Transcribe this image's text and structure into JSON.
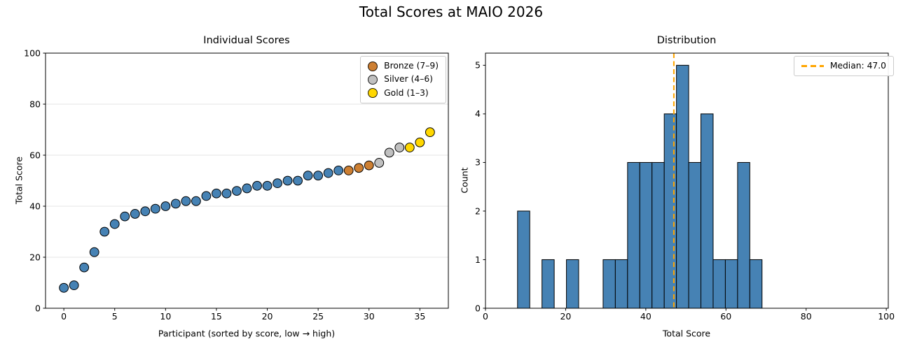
{
  "figure": {
    "suptitle": "Total Scores at MAIO 2026",
    "background": "#ffffff"
  },
  "colors": {
    "point_blue": "#4682B4",
    "bar_blue": "#4682B4",
    "bronze": "#CD7F32",
    "silver": "#C0C0C0",
    "gold": "#FFD700",
    "median_orange": "#FFA500",
    "edge_black": "#000000",
    "grid_gray": "#E6E6E6"
  },
  "chart_data": [
    {
      "type": "scatter",
      "title": "Individual Scores",
      "xlabel": "Participant (sorted by score, low → high)",
      "ylabel": "Total Score",
      "x": [
        0,
        1,
        2,
        3,
        4,
        5,
        6,
        7,
        8,
        9,
        10,
        11,
        12,
        13,
        14,
        15,
        16,
        17,
        18,
        19,
        20,
        21,
        22,
        23,
        24,
        25,
        26,
        27,
        28,
        29,
        30,
        31,
        32,
        33,
        34,
        35,
        36
      ],
      "y": [
        8,
        9,
        16,
        22,
        30,
        33,
        36,
        37,
        38,
        39,
        40,
        41,
        42,
        42,
        44,
        45,
        45,
        46,
        47,
        48,
        48,
        49,
        50,
        50,
        52,
        52,
        53,
        54,
        54,
        55,
        56,
        57,
        61,
        63,
        63,
        65,
        69
      ],
      "marker_groups": {
        "bronze": [
          28,
          29,
          30
        ],
        "silver": [
          31,
          32,
          33
        ],
        "gold": [
          34,
          35,
          36
        ]
      },
      "xticks": [
        0,
        5,
        10,
        15,
        20,
        25,
        30,
        35
      ],
      "yticks": [
        0,
        20,
        40,
        60,
        80,
        100
      ],
      "xlim": [
        -1.8,
        37.8
      ],
      "ylim": [
        0,
        100
      ],
      "grid": "horizontal",
      "legend": {
        "position": "upper-right",
        "items": [
          {
            "label": "Bronze (7–9)",
            "color_key": "bronze",
            "marker": "circle"
          },
          {
            "label": "Silver (4–6)",
            "color_key": "silver",
            "marker": "circle"
          },
          {
            "label": "Gold (1–3)",
            "color_key": "gold",
            "marker": "circle"
          }
        ]
      }
    },
    {
      "type": "histogram",
      "title": "Distribution",
      "xlabel": "Total Score",
      "ylabel": "Count",
      "bin_start": 8.0,
      "bin_width": 3.05,
      "counts": [
        2,
        0,
        1,
        0,
        1,
        0,
        0,
        1,
        1,
        3,
        3,
        3,
        4,
        5,
        3,
        4,
        1,
        1,
        3,
        1
      ],
      "median": 47.0,
      "xticks": [
        0,
        20,
        40,
        60,
        80,
        100
      ],
      "yticks": [
        0,
        1,
        2,
        3,
        4,
        5
      ],
      "xlim": [
        0,
        100.5
      ],
      "ylim": [
        0,
        5.25
      ],
      "grid": "none",
      "legend": {
        "position": "upper-right",
        "items": [
          {
            "label": "Median: 47.0",
            "color_key": "median_orange",
            "marker": "dashed-line"
          }
        ]
      }
    }
  ]
}
